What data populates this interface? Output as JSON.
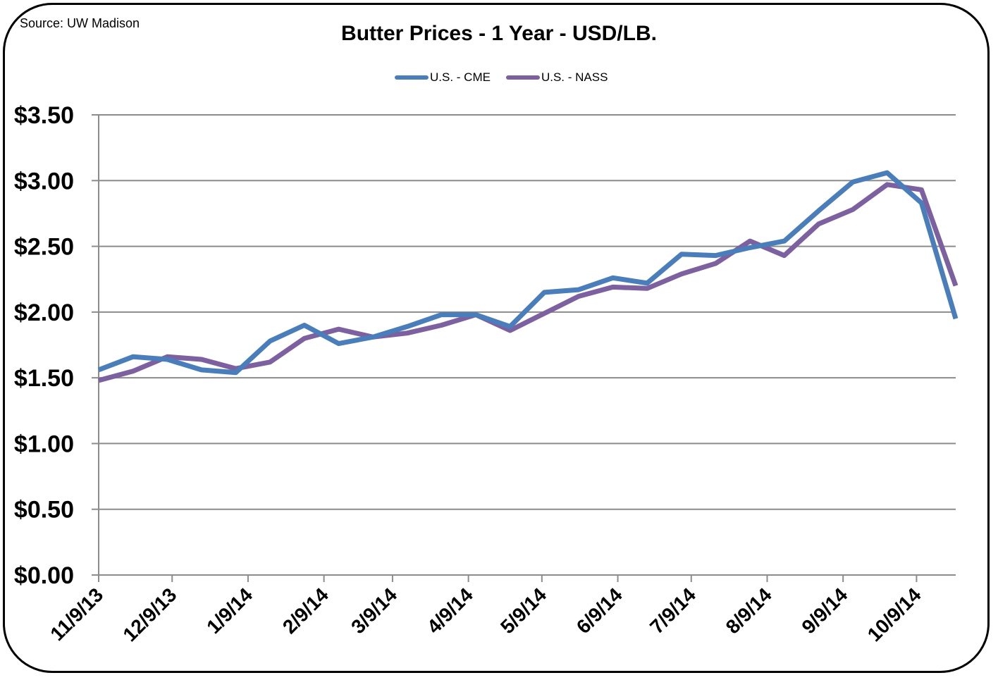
{
  "source": "Source: UW Madison",
  "chart_data": {
    "type": "line",
    "title": "Butter Prices - 1 Year - USD/LB.",
    "xlabel": "",
    "ylabel": "",
    "ylim": [
      0,
      3.5
    ],
    "y_ticks": [
      "$0.00",
      "$0.50",
      "$1.00",
      "$1.50",
      "$2.00",
      "$2.50",
      "$3.00",
      "$3.50"
    ],
    "y_tick_values": [
      0,
      0.5,
      1.0,
      1.5,
      2.0,
      2.5,
      3.0,
      3.5
    ],
    "x_tick_labels": [
      "11/9/13",
      "12/9/13",
      "1/9/14",
      "2/9/14",
      "3/9/14",
      "4/9/14",
      "5/9/14",
      "6/9/14",
      "7/9/14",
      "8/9/14",
      "9/9/14",
      "10/9/14"
    ],
    "x_range_days": [
      0,
      350
    ],
    "x_tick_days": [
      0,
      30,
      61,
      92,
      120,
      151,
      181,
      212,
      242,
      273,
      304,
      334
    ],
    "legend": "top-center",
    "grid": true,
    "series": [
      {
        "name": "U.S. - CME",
        "color": "#4a7ebb",
        "x_days": [
          0,
          14,
          28,
          42,
          56,
          70,
          84,
          98,
          112,
          126,
          140,
          154,
          168,
          182,
          196,
          210,
          224,
          238,
          252,
          266,
          280,
          294,
          308,
          322,
          336,
          350
        ],
        "values": [
          1.56,
          1.66,
          1.64,
          1.56,
          1.54,
          1.78,
          1.9,
          1.76,
          1.81,
          1.89,
          1.98,
          1.98,
          1.89,
          2.15,
          2.17,
          2.26,
          2.22,
          2.44,
          2.43,
          2.49,
          2.54,
          2.77,
          2.99,
          3.06,
          2.83,
          1.95
        ]
      },
      {
        "name": "U.S. - NASS",
        "color": "#7d60a0",
        "x_days": [
          0,
          14,
          28,
          42,
          56,
          70,
          84,
          98,
          112,
          126,
          140,
          154,
          168,
          182,
          196,
          210,
          224,
          238,
          252,
          266,
          280,
          294,
          308,
          322,
          336,
          350
        ],
        "values": [
          1.48,
          1.55,
          1.66,
          1.64,
          1.57,
          1.62,
          1.8,
          1.87,
          1.81,
          1.84,
          1.9,
          1.98,
          1.86,
          1.99,
          2.12,
          2.19,
          2.18,
          2.29,
          2.37,
          2.54,
          2.43,
          2.67,
          2.78,
          2.97,
          2.93,
          2.2
        ]
      }
    ]
  }
}
